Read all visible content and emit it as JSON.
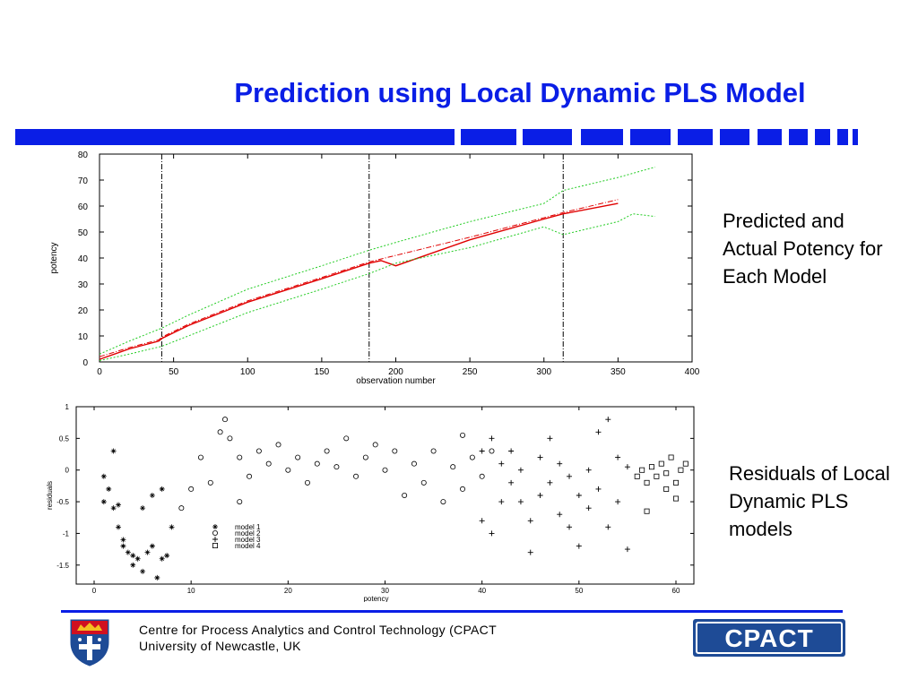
{
  "slide": {
    "title": "Prediction using Local Dynamic PLS Model",
    "note_top": "Predicted and Actual Potency for Each Model",
    "note_bottom": "Residuals of Local Dynamic PLS models",
    "footer_line1": "Centre for Process Analytics and Control Technology  (CPACT",
    "footer_line2": "University of Newcastle, UK",
    "logo_text": "CPACT",
    "colors": {
      "accent": "#0a1ee6",
      "actual": "#e00000",
      "bounds": "#22cc22",
      "logo": "#1e4b96"
    }
  },
  "chart_data": [
    {
      "type": "line",
      "xlabel": "observation number",
      "ylabel": "potency",
      "xlim": [
        0,
        400
      ],
      "ylim": [
        0,
        80
      ],
      "xticks": [
        0,
        50,
        100,
        150,
        200,
        250,
        300,
        350,
        400
      ],
      "yticks": [
        0,
        10,
        20,
        30,
        40,
        50,
        60,
        70,
        80
      ],
      "vlines": [
        42,
        182,
        313
      ],
      "series": [
        {
          "style": "actual",
          "x": [
            0,
            20,
            40,
            42,
            60,
            100,
            150,
            182,
            190,
            200,
            250,
            300,
            313,
            350
          ],
          "y": [
            1,
            5,
            8,
            9,
            14,
            23,
            32,
            38,
            39,
            37,
            47,
            55,
            57,
            61
          ]
        },
        {
          "style": "predicted",
          "x": [
            0,
            20,
            40,
            42,
            60,
            100,
            150,
            182,
            200,
            250,
            300,
            313,
            350
          ],
          "y": [
            2,
            5.5,
            8.5,
            9.5,
            14.5,
            23.5,
            32.5,
            38.5,
            41,
            48,
            55.5,
            57.5,
            62.5
          ]
        },
        {
          "style": "upper",
          "x": [
            0,
            20,
            42,
            60,
            100,
            150,
            182,
            200,
            250,
            300,
            313,
            350,
            375
          ],
          "y": [
            3,
            8,
            13,
            18,
            28,
            37,
            43,
            46,
            54,
            61,
            66,
            71,
            75
          ]
        },
        {
          "style": "lower",
          "x": [
            0,
            20,
            42,
            60,
            100,
            150,
            182,
            200,
            250,
            300,
            313,
            350,
            360,
            375
          ],
          "y": [
            0.5,
            3,
            6,
            10,
            19,
            28,
            34,
            38,
            44,
            52,
            49,
            54,
            57,
            56
          ]
        }
      ]
    },
    {
      "type": "scatter",
      "xlabel": "potency",
      "ylabel": "residuals",
      "xlim": [
        0,
        60
      ],
      "ylim": [
        -1.8,
        1
      ],
      "xticks": [
        0,
        10,
        20,
        30,
        40,
        50,
        60
      ],
      "yticks": [
        1,
        0.5,
        0,
        -0.5,
        -1,
        -1.5
      ],
      "series": [
        {
          "name": "model 1",
          "marker": "star",
          "points": [
            [
              1,
              -0.1
            ],
            [
              1.5,
              -0.3
            ],
            [
              2,
              -0.6
            ],
            [
              2.5,
              -0.9
            ],
            [
              3,
              -1.1
            ],
            [
              3,
              -1.2
            ],
            [
              3.5,
              -1.3
            ],
            [
              4,
              -1.35
            ],
            [
              4,
              -1.5
            ],
            [
              4.5,
              -1.4
            ],
            [
              5,
              -1.6
            ],
            [
              5.5,
              -1.3
            ],
            [
              6,
              -1.2
            ],
            [
              6.5,
              -1.7
            ],
            [
              7,
              -1.4
            ],
            [
              7.5,
              -1.35
            ],
            [
              7,
              -0.3
            ],
            [
              8,
              -0.9
            ],
            [
              2,
              0.3
            ],
            [
              1,
              -0.5
            ],
            [
              2.5,
              -0.55
            ],
            [
              5,
              -0.6
            ],
            [
              6,
              -0.4
            ]
          ]
        },
        {
          "name": "model 2",
          "marker": "circle",
          "points": [
            [
              9,
              -0.6
            ],
            [
              10,
              -0.3
            ],
            [
              11,
              0.2
            ],
            [
              12,
              -0.2
            ],
            [
              13,
              0.6
            ],
            [
              13.5,
              0.8
            ],
            [
              14,
              0.5
            ],
            [
              15,
              0.2
            ],
            [
              15,
              -0.5
            ],
            [
              16,
              -0.1
            ],
            [
              17,
              0.3
            ],
            [
              18,
              0.1
            ],
            [
              19,
              0.4
            ],
            [
              20,
              0.0
            ],
            [
              21,
              0.2
            ],
            [
              22,
              -0.2
            ],
            [
              23,
              0.1
            ],
            [
              24,
              0.3
            ],
            [
              25,
              0.05
            ],
            [
              26,
              0.5
            ],
            [
              27,
              -0.1
            ],
            [
              28,
              0.2
            ],
            [
              29,
              0.4
            ],
            [
              30,
              0.0
            ],
            [
              31,
              0.3
            ],
            [
              32,
              -0.4
            ],
            [
              33,
              0.1
            ],
            [
              34,
              -0.2
            ],
            [
              35,
              0.3
            ],
            [
              36,
              -0.5
            ],
            [
              37,
              0.05
            ],
            [
              38,
              -0.3
            ],
            [
              39,
              0.2
            ],
            [
              38,
              0.55
            ],
            [
              40,
              -0.1
            ],
            [
              41,
              0.3
            ]
          ]
        },
        {
          "name": "model 3",
          "marker": "plus",
          "points": [
            [
              40,
              0.3
            ],
            [
              40,
              -0.8
            ],
            [
              41,
              0.5
            ],
            [
              41,
              -1.0
            ],
            [
              42,
              0.1
            ],
            [
              42,
              -0.5
            ],
            [
              43,
              0.3
            ],
            [
              43,
              -0.2
            ],
            [
              44,
              -0.5
            ],
            [
              44,
              0.0
            ],
            [
              45,
              -0.8
            ],
            [
              45,
              -1.3
            ],
            [
              46,
              0.2
            ],
            [
              46,
              -0.4
            ],
            [
              47,
              0.5
            ],
            [
              47,
              -0.2
            ],
            [
              48,
              -0.7
            ],
            [
              48,
              0.1
            ],
            [
              49,
              -0.1
            ],
            [
              49,
              -0.9
            ],
            [
              50,
              -0.4
            ],
            [
              50,
              -1.2
            ],
            [
              51,
              0.0
            ],
            [
              51,
              -0.6
            ],
            [
              52,
              -0.3
            ],
            [
              52,
              0.6
            ],
            [
              53,
              0.8
            ],
            [
              53,
              -0.9
            ],
            [
              54,
              0.2
            ],
            [
              54,
              -0.5
            ],
            [
              55,
              -1.25
            ],
            [
              55,
              0.05
            ]
          ]
        },
        {
          "name": "model 4",
          "marker": "square",
          "points": [
            [
              56,
              -0.1
            ],
            [
              56.5,
              0.0
            ],
            [
              57,
              -0.2
            ],
            [
              57,
              -0.65
            ],
            [
              57.5,
              0.05
            ],
            [
              58,
              -0.1
            ],
            [
              58.5,
              0.1
            ],
            [
              59,
              -0.05
            ],
            [
              59,
              -0.3
            ],
            [
              59.5,
              0.2
            ],
            [
              60,
              -0.2
            ],
            [
              60,
              -0.45
            ],
            [
              60.5,
              0.0
            ],
            [
              61,
              0.1
            ]
          ]
        }
      ]
    }
  ]
}
